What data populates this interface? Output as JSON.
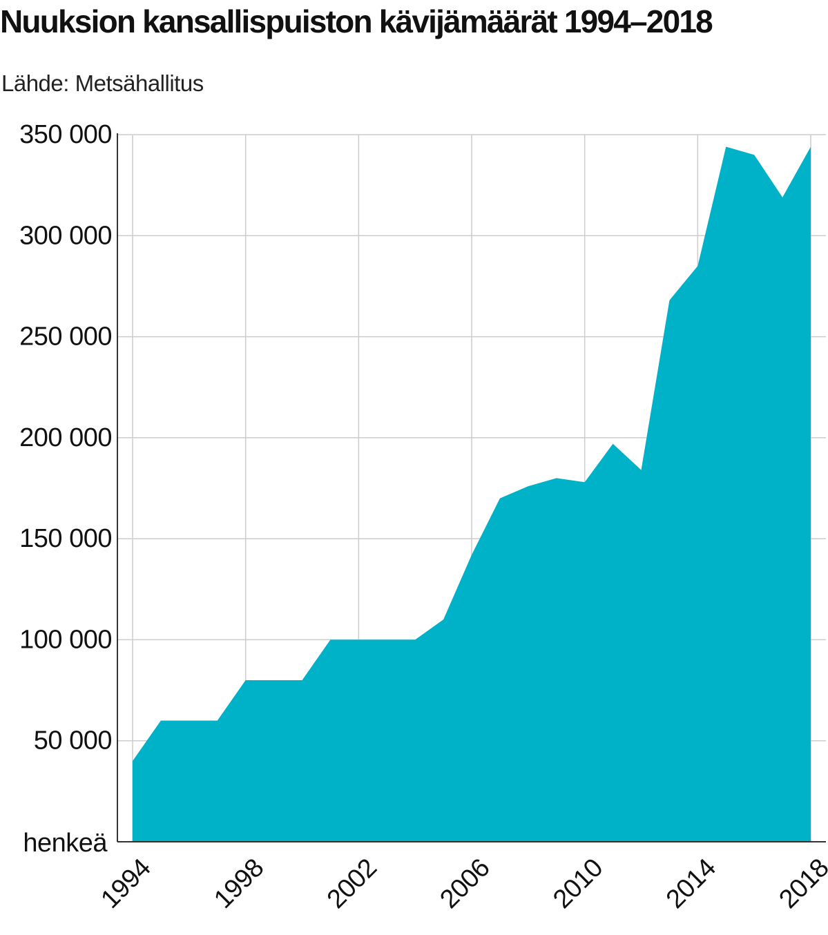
{
  "chart_data": {
    "type": "area",
    "title": "Nuuksion kansallispuiston kävijämäärät 1994–2018",
    "subtitle": "Lähde: Metsähallitus",
    "ylabel": "henkeä",
    "xlabel": "",
    "color": "#00b2c8",
    "grid": true,
    "xlim": [
      1994,
      2018
    ],
    "ylim": [
      0,
      350000
    ],
    "x_ticks": [
      1994,
      1998,
      2002,
      2006,
      2010,
      2014,
      2018
    ],
    "x_tick_labels": [
      "1994",
      "1998",
      "2002",
      "2006",
      "2010",
      "2014",
      "2018"
    ],
    "y_ticks": [
      50000,
      100000,
      150000,
      200000,
      250000,
      300000,
      350000
    ],
    "y_tick_labels": [
      "50 000",
      "100 000",
      "150 000",
      "200 000",
      "250 000",
      "300 000",
      "350 000"
    ],
    "x": [
      1994,
      1995,
      1996,
      1997,
      1998,
      1999,
      2000,
      2001,
      2002,
      2003,
      2004,
      2005,
      2006,
      2007,
      2008,
      2009,
      2010,
      2011,
      2012,
      2013,
      2014,
      2015,
      2016,
      2017,
      2018
    ],
    "values": [
      40000,
      60000,
      60000,
      60000,
      80000,
      80000,
      80000,
      100000,
      100000,
      100000,
      100000,
      110000,
      142000,
      170000,
      176000,
      180000,
      178000,
      197000,
      184000,
      268000,
      285000,
      344000,
      340000,
      319000,
      344000
    ]
  }
}
